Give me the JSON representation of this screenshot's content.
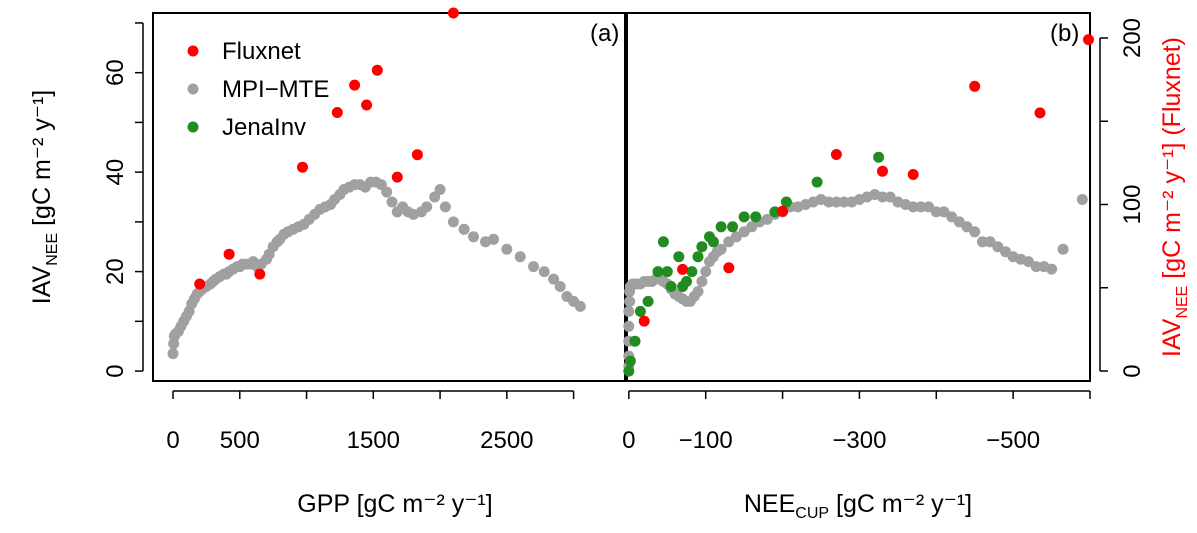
{
  "chart_data": [
    {
      "panel": "(a)",
      "type": "scatter",
      "xlabel": "GPP [gC m⁻² y⁻¹]",
      "ylabel": "IAV_NEE [gC m⁻² y⁻¹]",
      "ylabel_base": "IAV",
      "ylabel_sub": "NEE",
      "ylabel_rest": " [gC m⁻² y⁻¹]",
      "xlim": [
        -150,
        3400
      ],
      "ylim": [
        -2,
        72
      ],
      "x_ticks": [
        0,
        500,
        1500,
        2500
      ],
      "x_tick_marks": [
        0,
        500,
        1000,
        1500,
        2000,
        2500,
        3000
      ],
      "y_ticks": [
        0,
        20,
        40,
        60
      ],
      "legend": [
        "Fluxnet",
        "MPI−MTE",
        "JenaInv"
      ],
      "legend_colors": [
        "#ff0000",
        "#a0a0a0",
        "#228b22"
      ],
      "legend_position": "top-left",
      "series": [
        {
          "name": "MPI−MTE",
          "color": "#a0a0a0",
          "points": [
            [
              0,
              3.5
            ],
            [
              5,
              5.5
            ],
            [
              10,
              7
            ],
            [
              20,
              7.5
            ],
            [
              40,
              8
            ],
            [
              60,
              9
            ],
            [
              80,
              10
            ],
            [
              100,
              11
            ],
            [
              120,
              12
            ],
            [
              140,
              13.5
            ],
            [
              160,
              14.5
            ],
            [
              180,
              15.5
            ],
            [
              200,
              16
            ],
            [
              220,
              16.5
            ],
            [
              250,
              17
            ],
            [
              280,
              17.5
            ],
            [
              300,
              18
            ],
            [
              320,
              18.5
            ],
            [
              350,
              19
            ],
            [
              380,
              19.5
            ],
            [
              400,
              19.5
            ],
            [
              420,
              20
            ],
            [
              450,
              20.5
            ],
            [
              480,
              21
            ],
            [
              500,
              21
            ],
            [
              520,
              21.5
            ],
            [
              550,
              21.5
            ],
            [
              580,
              21.5
            ],
            [
              600,
              22
            ],
            [
              630,
              21
            ],
            [
              660,
              21.5
            ],
            [
              700,
              22.5
            ],
            [
              720,
              23.5
            ],
            [
              750,
              25
            ],
            [
              780,
              26
            ],
            [
              800,
              26.5
            ],
            [
              830,
              27.5
            ],
            [
              860,
              28
            ],
            [
              900,
              28.5
            ],
            [
              940,
              29
            ],
            [
              980,
              29.5
            ],
            [
              1020,
              30.5
            ],
            [
              1060,
              31.5
            ],
            [
              1100,
              32.5
            ],
            [
              1140,
              33
            ],
            [
              1180,
              33.5
            ],
            [
              1210,
              34.5
            ],
            [
              1250,
              35.5
            ],
            [
              1280,
              36.5
            ],
            [
              1320,
              37
            ],
            [
              1360,
              37.5
            ],
            [
              1400,
              37.5
            ],
            [
              1440,
              37
            ],
            [
              1480,
              38
            ],
            [
              1520,
              38
            ],
            [
              1560,
              37.5
            ],
            [
              1600,
              36
            ],
            [
              1640,
              34
            ],
            [
              1680,
              32
            ],
            [
              1720,
              33
            ],
            [
              1760,
              32
            ],
            [
              1800,
              31.5
            ],
            [
              1860,
              32
            ],
            [
              1900,
              33
            ],
            [
              1960,
              35
            ],
            [
              2000,
              36.5
            ],
            [
              2040,
              33
            ],
            [
              2100,
              30
            ],
            [
              2180,
              28.5
            ],
            [
              2250,
              27
            ],
            [
              2340,
              26
            ],
            [
              2400,
              26.5
            ],
            [
              2500,
              24.5
            ],
            [
              2600,
              23
            ],
            [
              2700,
              21
            ],
            [
              2780,
              20
            ],
            [
              2850,
              18.5
            ],
            [
              2900,
              17
            ],
            [
              2950,
              15
            ],
            [
              3000,
              14
            ],
            [
              3050,
              13
            ]
          ]
        },
        {
          "name": "Fluxnet",
          "color": "#ff0000",
          "points": [
            [
              200,
              17.5
            ],
            [
              420,
              23.5
            ],
            [
              650,
              19.5
            ],
            [
              970,
              41
            ],
            [
              1230,
              52
            ],
            [
              1360,
              57.5
            ],
            [
              1450,
              53.5
            ],
            [
              1530,
              60.5
            ],
            [
              1680,
              39
            ],
            [
              1830,
              43.5
            ],
            [
              2100,
              72
            ]
          ]
        }
      ]
    },
    {
      "panel": "(b)",
      "type": "scatter",
      "xlabel": "NEE_CUP [gC m⁻² y⁻¹]",
      "xlabel_base": "NEE",
      "xlabel_sub": "CUP",
      "xlabel_rest": " [gC m⁻² y⁻¹]",
      "ylabel_right": "IAV_NEE [gC m⁻² y⁻¹] (Fluxnet)",
      "ylabel_right_base": "IAV",
      "ylabel_right_sub": "NEE",
      "ylabel_right_rest": " [gC m⁻² y⁻¹] (Fluxnet)",
      "xlim": [
        5,
        -600
      ],
      "ylim_left": [
        -2,
        72
      ],
      "ylim_right": [
        -6,
        215
      ],
      "x_ticks": [
        0,
        -100,
        -300,
        -500
      ],
      "x_tick_marks": [
        0,
        -100,
        -200,
        -300,
        -400,
        -500,
        -600
      ],
      "y_right_ticks": [
        0,
        100,
        200
      ],
      "series": [
        {
          "name": "MPI−MTE",
          "axis": "left",
          "color": "#a0a0a0",
          "points": [
            [
              0,
              1
            ],
            [
              0,
              3
            ],
            [
              0,
              6
            ],
            [
              0,
              9
            ],
            [
              0,
              12
            ],
            [
              -1,
              14
            ],
            [
              -1,
              16
            ],
            [
              -2,
              17
            ],
            [
              -5,
              17.5
            ],
            [
              -10,
              17.5
            ],
            [
              -15,
              17.5
            ],
            [
              -20,
              18
            ],
            [
              -25,
              18
            ],
            [
              -30,
              18
            ],
            [
              -35,
              18.5
            ],
            [
              -40,
              18.5
            ],
            [
              -45,
              18
            ],
            [
              -50,
              17.5
            ],
            [
              -55,
              16.5
            ],
            [
              -60,
              15.5
            ],
            [
              -65,
              15
            ],
            [
              -70,
              14.5
            ],
            [
              -75,
              14
            ],
            [
              -80,
              14
            ],
            [
              -85,
              15
            ],
            [
              -90,
              16
            ],
            [
              -95,
              18
            ],
            [
              -100,
              20
            ],
            [
              -105,
              22
            ],
            [
              -110,
              23
            ],
            [
              -115,
              24
            ],
            [
              -120,
              24.5
            ],
            [
              -130,
              26
            ],
            [
              -140,
              27
            ],
            [
              -150,
              28
            ],
            [
              -160,
              29
            ],
            [
              -170,
              30
            ],
            [
              -180,
              30.5
            ],
            [
              -190,
              31.5
            ],
            [
              -200,
              32
            ],
            [
              -210,
              33
            ],
            [
              -220,
              33
            ],
            [
              -230,
              33.5
            ],
            [
              -240,
              34
            ],
            [
              -250,
              34.5
            ],
            [
              -260,
              34
            ],
            [
              -270,
              34
            ],
            [
              -280,
              34
            ],
            [
              -290,
              34
            ],
            [
              -300,
              34.5
            ],
            [
              -310,
              35
            ],
            [
              -320,
              35.5
            ],
            [
              -330,
              35
            ],
            [
              -340,
              35
            ],
            [
              -350,
              34
            ],
            [
              -360,
              33.5
            ],
            [
              -370,
              33
            ],
            [
              -380,
              33
            ],
            [
              -390,
              33
            ],
            [
              -400,
              32
            ],
            [
              -410,
              32
            ],
            [
              -420,
              31
            ],
            [
              -430,
              30
            ],
            [
              -440,
              29
            ],
            [
              -450,
              28
            ],
            [
              -460,
              26
            ],
            [
              -470,
              26
            ],
            [
              -480,
              25
            ],
            [
              -490,
              24
            ],
            [
              -500,
              23
            ],
            [
              -510,
              22.5
            ],
            [
              -520,
              22
            ],
            [
              -530,
              21
            ],
            [
              -540,
              21
            ],
            [
              -550,
              20.5
            ],
            [
              -565,
              24.5
            ],
            [
              -590,
              34.5
            ]
          ]
        },
        {
          "name": "JenaInv",
          "axis": "left",
          "color": "#228b22",
          "points": [
            [
              0,
              0
            ],
            [
              -2,
              2
            ],
            [
              -8,
              6
            ],
            [
              -15,
              12
            ],
            [
              -25,
              14
            ],
            [
              -38,
              20
            ],
            [
              -45,
              26
            ],
            [
              -50,
              20
            ],
            [
              -55,
              17
            ],
            [
              -65,
              23
            ],
            [
              -70,
              17
            ],
            [
              -75,
              18
            ],
            [
              -82,
              20
            ],
            [
              -90,
              23
            ],
            [
              -95,
              25
            ],
            [
              -105,
              27
            ],
            [
              -110,
              26
            ],
            [
              -120,
              29
            ],
            [
              -135,
              29
            ],
            [
              -150,
              31
            ],
            [
              -165,
              31
            ],
            [
              -190,
              32
            ],
            [
              -205,
              34
            ],
            [
              -245,
              38
            ],
            [
              -325,
              43
            ]
          ]
        },
        {
          "name": "Fluxnet",
          "axis": "right",
          "color": "#ff0000",
          "points": [
            [
              -20,
              30
            ],
            [
              -70,
              61
            ],
            [
              -130,
              62
            ],
            [
              -200,
              96
            ],
            [
              -270,
              130
            ],
            [
              -330,
              120
            ],
            [
              -370,
              118
            ],
            [
              -450,
              171
            ],
            [
              -535,
              155
            ],
            [
              -598,
              199
            ]
          ]
        }
      ]
    }
  ]
}
